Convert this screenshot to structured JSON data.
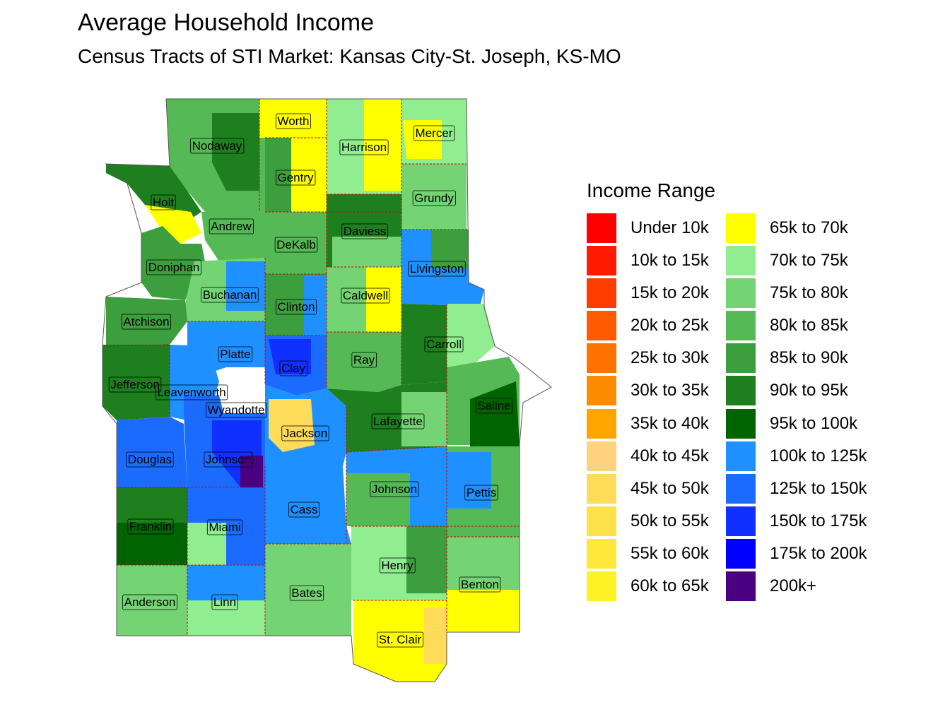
{
  "title": "Average Household Income",
  "subtitle": "Census Tracts of STI Market: Kansas City-St. Joseph, KS-MO",
  "legend": {
    "title": "Income Range",
    "items": [
      {
        "label": "Under 10k",
        "color": "#ff0000"
      },
      {
        "label": "10k to 15k",
        "color": "#ff1a00"
      },
      {
        "label": "15k to 20k",
        "color": "#ff3c00"
      },
      {
        "label": "20k to 25k",
        "color": "#ff5a00"
      },
      {
        "label": "25k to 30k",
        "color": "#ff7200"
      },
      {
        "label": "30k to 35k",
        "color": "#ff8c00"
      },
      {
        "label": "35k to 40k",
        "color": "#ffa500"
      },
      {
        "label": "40k to 45k",
        "color": "#ffd27f"
      },
      {
        "label": "45k to 50k",
        "color": "#ffdb5a"
      },
      {
        "label": "50k to 55k",
        "color": "#ffe24a"
      },
      {
        "label": "55k to 60k",
        "color": "#ffe83a"
      },
      {
        "label": "60k to 65k",
        "color": "#fff226"
      },
      {
        "label": "65k to 70k",
        "color": "#ffff00"
      },
      {
        "label": "70k to 75k",
        "color": "#90ee90"
      },
      {
        "label": "75k to 80k",
        "color": "#74d474"
      },
      {
        "label": "80k to 85k",
        "color": "#55b955"
      },
      {
        "label": "85k to 90k",
        "color": "#3c9e3c"
      },
      {
        "label": "90k to 95k",
        "color": "#1e7f1e"
      },
      {
        "label": "95k to 100k",
        "color": "#006400"
      },
      {
        "label": "100k to 125k",
        "color": "#1e90ff"
      },
      {
        "label": "125k to 150k",
        "color": "#1c6bff"
      },
      {
        "label": "150k to 175k",
        "color": "#1030ff"
      },
      {
        "label": "175k to 200k",
        "color": "#0000ff"
      },
      {
        "label": "200k+",
        "color": "#4b0082"
      }
    ]
  },
  "counties": [
    {
      "name": "Worth"
    },
    {
      "name": "Nodaway"
    },
    {
      "name": "Harrison"
    },
    {
      "name": "Mercer"
    },
    {
      "name": "Gentry"
    },
    {
      "name": "Holt"
    },
    {
      "name": "Grundy"
    },
    {
      "name": "Andrew"
    },
    {
      "name": "Daviess"
    },
    {
      "name": "DeKalb"
    },
    {
      "name": "Doniphan"
    },
    {
      "name": "Livingston"
    },
    {
      "name": "Buchanan"
    },
    {
      "name": "Caldwell"
    },
    {
      "name": "Clinton"
    },
    {
      "name": "Atchison"
    },
    {
      "name": "Carroll"
    },
    {
      "name": "Platte"
    },
    {
      "name": "Ray"
    },
    {
      "name": "Clay"
    },
    {
      "name": "Jefferson"
    },
    {
      "name": "Leavenworth"
    },
    {
      "name": "Saline"
    },
    {
      "name": "Wyandotte"
    },
    {
      "name": "Lafayette"
    },
    {
      "name": "Jackson"
    },
    {
      "name": "Douglas"
    },
    {
      "name": "Johnson"
    },
    {
      "name": "Johnson"
    },
    {
      "name": "Pettis"
    },
    {
      "name": "Cass"
    },
    {
      "name": "Franklin"
    },
    {
      "name": "Miami"
    },
    {
      "name": "Henry"
    },
    {
      "name": "Benton"
    },
    {
      "name": "Bates"
    },
    {
      "name": "Anderson"
    },
    {
      "name": "Linn"
    },
    {
      "name": "St. Clair"
    }
  ]
}
